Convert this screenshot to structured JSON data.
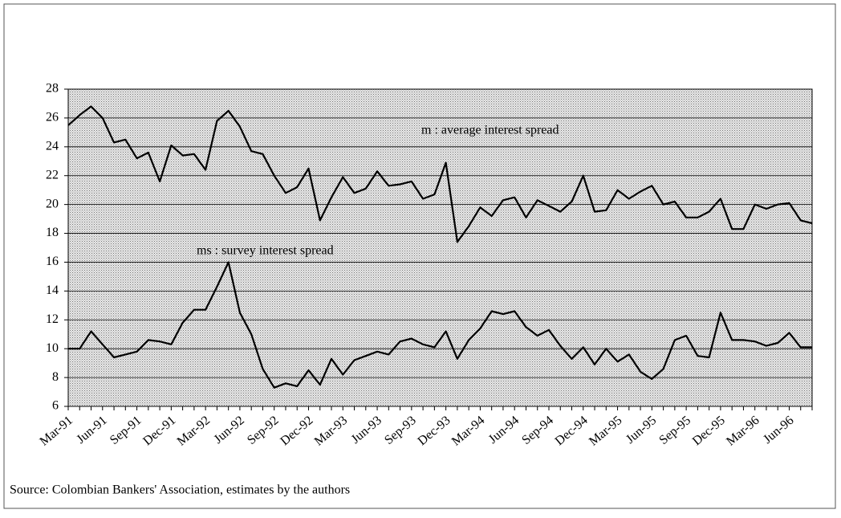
{
  "chart_data": {
    "type": "line",
    "categories": [
      "Mar-91",
      null,
      null,
      "Jun-91",
      null,
      null,
      "Sep-91",
      null,
      null,
      "Dec-91",
      null,
      null,
      "Mar-92",
      null,
      null,
      "Jun-92",
      null,
      null,
      "Sep-92",
      null,
      null,
      "Dec-92",
      null,
      null,
      "Mar-93",
      null,
      null,
      "Jun-93",
      null,
      null,
      "Sep-93",
      null,
      null,
      "Dec-93",
      null,
      null,
      "Mar-94",
      null,
      null,
      "Jun-94",
      null,
      null,
      "Sep-94",
      null,
      null,
      "Dec-94",
      null,
      null,
      "Mar-95",
      null,
      null,
      "Jun-95",
      null,
      null,
      "Sep-95",
      null,
      null,
      "Dec-95",
      null,
      null,
      "Mar-96",
      null,
      null,
      "Jun-96",
      null,
      null
    ],
    "series": [
      {
        "name": "m : average interest spread",
        "color": "#000000",
        "values": [
          25.5,
          26.2,
          26.8,
          26.0,
          24.3,
          24.5,
          23.2,
          23.6,
          21.6,
          24.1,
          23.4,
          23.5,
          22.4,
          25.8,
          26.5,
          25.4,
          23.7,
          23.5,
          22.0,
          20.8,
          21.2,
          22.5,
          18.9,
          20.5,
          21.9,
          20.8,
          21.1,
          22.3,
          21.3,
          21.4,
          21.6,
          20.4,
          20.7,
          22.9,
          17.4,
          18.5,
          19.8,
          19.2,
          20.3,
          20.5,
          19.1,
          20.3,
          19.9,
          19.5,
          20.2,
          22.0,
          19.5,
          19.6,
          21.0,
          20.4,
          20.9,
          21.3,
          20.0,
          20.2,
          19.1,
          19.1,
          19.5,
          20.4,
          18.3,
          18.3,
          20.0,
          19.7,
          20.0,
          20.1,
          18.9,
          18.7
        ]
      },
      {
        "name": "ms : survey interest spread",
        "color": "#000000",
        "values": [
          10.0,
          10.0,
          11.2,
          10.3,
          9.4,
          9.6,
          9.8,
          10.6,
          10.5,
          10.3,
          11.8,
          12.7,
          12.7,
          14.3,
          16.0,
          12.5,
          11.0,
          8.6,
          7.3,
          7.6,
          7.4,
          8.5,
          7.5,
          9.3,
          8.2,
          9.2,
          9.5,
          9.8,
          9.6,
          10.5,
          10.7,
          10.3,
          10.1,
          11.2,
          9.3,
          10.6,
          11.4,
          12.6,
          12.4,
          12.6,
          11.5,
          10.9,
          11.3,
          10.2,
          9.3,
          10.1,
          8.9,
          10.0,
          9.1,
          9.6,
          8.4,
          7.9,
          8.6,
          10.6,
          10.9,
          9.5,
          9.4,
          12.5,
          10.6,
          10.6,
          10.5,
          10.2,
          10.4,
          11.1,
          10.1,
          10.1
        ]
      }
    ],
    "ylim": [
      6,
      28
    ],
    "yticks": [
      6,
      8,
      10,
      12,
      14,
      16,
      18,
      20,
      22,
      24,
      26,
      28
    ],
    "grid": true,
    "source": "Source: Colombian Bankers' Association, estimates by the authors"
  }
}
